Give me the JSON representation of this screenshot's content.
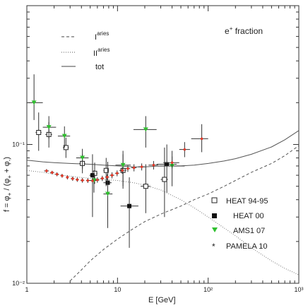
{
  "chart_data": {
    "type": "scatter",
    "title": "e+ fraction",
    "title_parts": {
      "base": "e",
      "sup": "+",
      "rest": " fraction"
    },
    "xlabel": "E [GeV]",
    "ylabel": "f = φ+ / (φ+ + φ-)",
    "ylabel_parts": [
      "f = φ",
      "+",
      " / (φ",
      "+",
      " + φ",
      "-",
      ")"
    ],
    "x_scale": "log",
    "y_scale": "log",
    "xlim": [
      1,
      1000
    ],
    "ylim": [
      0.01,
      1
    ],
    "x_ticks": [
      {
        "value": 1,
        "label": "1"
      },
      {
        "value": 10,
        "label": "10"
      },
      {
        "value": 100,
        "label": "10²"
      },
      {
        "value": 1000,
        "label": "10³"
      }
    ],
    "y_ticks": [
      {
        "value": 0.01,
        "label": "10⁻²"
      },
      {
        "value": 0.1,
        "label": "10⁻¹"
      }
    ],
    "grid": false,
    "legend_lines_placement": "top-left",
    "legend_markers_placement": "bottom-right",
    "line_legend": [
      {
        "name": "I",
        "sup": "aries",
        "style": "dashed"
      },
      {
        "name": "II",
        "sup": "aries",
        "style": "dotted"
      },
      {
        "name": "tot",
        "sup": "",
        "style": "solid"
      }
    ],
    "lines": [
      {
        "name": "tot",
        "style": "solid",
        "color": "#555555",
        "x": [
          1,
          1.5,
          2,
          3,
          5,
          7,
          10,
          15,
          20,
          30,
          50,
          70,
          100,
          150,
          200,
          300,
          500,
          700,
          1000
        ],
        "y": [
          0.077,
          0.075,
          0.074,
          0.073,
          0.072,
          0.071,
          0.07,
          0.069,
          0.069,
          0.07,
          0.07,
          0.071,
          0.073,
          0.076,
          0.079,
          0.085,
          0.096,
          0.108,
          0.126
        ]
      },
      {
        "name": "I",
        "style": "dashed",
        "color": "#555555",
        "x": [
          3,
          4,
          5,
          7,
          10,
          15,
          20,
          30,
          50,
          70,
          100,
          150,
          200,
          300,
          500,
          700,
          1000
        ],
        "y": [
          0.0104,
          0.0125,
          0.0145,
          0.0175,
          0.0208,
          0.0248,
          0.0278,
          0.0315,
          0.036,
          0.04,
          0.044,
          0.05,
          0.055,
          0.063,
          0.073,
          0.083,
          0.098
        ]
      },
      {
        "name": "II",
        "style": "dotted",
        "color": "#777777",
        "x": [
          1,
          1.5,
          2,
          3,
          5,
          7,
          10,
          15,
          20,
          30,
          50,
          70,
          100,
          150,
          200,
          300,
          500,
          700,
          1000
        ],
        "y": [
          0.065,
          0.063,
          0.061,
          0.059,
          0.057,
          0.056,
          0.055,
          0.053,
          0.051,
          0.047,
          0.04,
          0.035,
          0.03,
          0.025,
          0.022,
          0.018,
          0.0145,
          0.0128,
          0.0115
        ]
      }
    ],
    "series": [
      {
        "name": "HEAT 94-95",
        "marker": "open-square",
        "color": "#222222",
        "points": [
          {
            "x": 1.35,
            "y": 0.122,
            "xlo": 1.25,
            "xhi": 1.45,
            "ylo": 0.09,
            "yhi": 0.17
          },
          {
            "x": 1.75,
            "y": 0.118,
            "xlo": 1.6,
            "xhi": 1.9,
            "ylo": 0.095,
            "yhi": 0.145
          },
          {
            "x": 2.7,
            "y": 0.095,
            "xlo": 2.5,
            "xhi": 2.9,
            "ylo": 0.08,
            "yhi": 0.112
          },
          {
            "x": 4.1,
            "y": 0.073,
            "xlo": 3.8,
            "xhi": 4.4,
            "ylo": 0.062,
            "yhi": 0.085
          },
          {
            "x": 5.6,
            "y": 0.062,
            "xlo": 5.2,
            "xhi": 6.0,
            "ylo": 0.052,
            "yhi": 0.074
          },
          {
            "x": 7.5,
            "y": 0.065,
            "xlo": 7.0,
            "xhi": 8.0,
            "ylo": 0.05,
            "yhi": 0.08
          },
          {
            "x": 11.5,
            "y": 0.065,
            "xlo": 10.5,
            "xhi": 12.5,
            "ylo": 0.048,
            "yhi": 0.085
          },
          {
            "x": 20.5,
            "y": 0.05,
            "xlo": 18.0,
            "xhi": 23.0,
            "ylo": 0.032,
            "yhi": 0.072
          },
          {
            "x": 33.0,
            "y": 0.056,
            "xlo": 30.0,
            "xhi": 36.0,
            "ylo": 0.03,
            "yhi": 0.095
          }
        ]
      },
      {
        "name": "HEAT 00",
        "marker": "filled-square",
        "color": "#111111",
        "points": [
          {
            "x": 5.3,
            "y": 0.06,
            "xlo": 4.9,
            "xhi": 5.7,
            "ylo": 0.03,
            "yhi": 0.085
          },
          {
            "x": 7.8,
            "y": 0.053,
            "xlo": 7.0,
            "xhi": 8.6,
            "ylo": 0.03,
            "yhi": 0.075
          },
          {
            "x": 13.5,
            "y": 0.036,
            "xlo": 10.8,
            "xhi": 17.0,
            "ylo": 0.018,
            "yhi": 0.058
          },
          {
            "x": 35.0,
            "y": 0.072,
            "xlo": 27.0,
            "xhi": 45.0,
            "ylo": 0.045,
            "yhi": 0.1
          }
        ]
      },
      {
        "name": "AMS1 07",
        "marker": "green-triangle",
        "color": "#2fbf2f",
        "points": [
          {
            "x": 1.2,
            "y": 0.2,
            "xlo": 1.05,
            "xhi": 1.5,
            "ylo": 0.15,
            "yhi": 0.32
          },
          {
            "x": 1.75,
            "y": 0.133,
            "xlo": 1.5,
            "xhi": 2.1,
            "ylo": 0.11,
            "yhi": 0.16
          },
          {
            "x": 2.6,
            "y": 0.115,
            "xlo": 2.2,
            "xhi": 3.0,
            "ylo": 0.095,
            "yhi": 0.135
          },
          {
            "x": 4.1,
            "y": 0.08,
            "xlo": 3.5,
            "xhi": 4.8,
            "ylo": 0.067,
            "yhi": 0.093
          },
          {
            "x": 5.5,
            "y": 0.055,
            "xlo": 4.9,
            "xhi": 6.2,
            "ylo": 0.045,
            "yhi": 0.065
          },
          {
            "x": 7.8,
            "y": 0.044,
            "xlo": 7.0,
            "xhi": 8.8,
            "ylo": 0.025,
            "yhi": 0.062
          },
          {
            "x": 11.5,
            "y": 0.071,
            "xlo": 9.5,
            "xhi": 14.0,
            "ylo": 0.05,
            "yhi": 0.09
          },
          {
            "x": 20.5,
            "y": 0.128,
            "xlo": 15.0,
            "xhi": 27.0,
            "ylo": 0.095,
            "yhi": 0.16
          },
          {
            "x": 40.0,
            "y": 0.07,
            "xlo": 28.0,
            "xhi": 55.0,
            "ylo": 0.05,
            "yhi": 0.09
          }
        ]
      },
      {
        "name": "PAMELA 10",
        "marker": "red-star",
        "color": "#e03a2a",
        "points": [
          {
            "x": 1.65,
            "y": 0.0645,
            "xlo": 1.55,
            "xhi": 1.75,
            "ylo": 0.0625,
            "yhi": 0.0665
          },
          {
            "x": 1.9,
            "y": 0.0628,
            "xlo": 1.8,
            "xhi": 2.0,
            "ylo": 0.061,
            "yhi": 0.0646
          },
          {
            "x": 2.15,
            "y": 0.061,
            "xlo": 2.05,
            "xhi": 2.25,
            "ylo": 0.059,
            "yhi": 0.063
          },
          {
            "x": 2.45,
            "y": 0.0595,
            "xlo": 2.35,
            "xhi": 2.55,
            "ylo": 0.0576,
            "yhi": 0.0614
          },
          {
            "x": 2.8,
            "y": 0.058,
            "xlo": 2.7,
            "xhi": 2.9,
            "ylo": 0.056,
            "yhi": 0.06
          },
          {
            "x": 3.2,
            "y": 0.0567,
            "xlo": 3.05,
            "xhi": 3.35,
            "ylo": 0.0547,
            "yhi": 0.0587
          },
          {
            "x": 3.6,
            "y": 0.0558,
            "xlo": 3.45,
            "xhi": 3.75,
            "ylo": 0.0538,
            "yhi": 0.0578
          },
          {
            "x": 4.1,
            "y": 0.0552,
            "xlo": 3.9,
            "xhi": 4.3,
            "ylo": 0.053,
            "yhi": 0.0574
          },
          {
            "x": 4.7,
            "y": 0.055,
            "xlo": 4.5,
            "xhi": 4.9,
            "ylo": 0.0528,
            "yhi": 0.0572
          },
          {
            "x": 5.3,
            "y": 0.0548,
            "xlo": 5.1,
            "xhi": 5.5,
            "ylo": 0.0526,
            "yhi": 0.057
          },
          {
            "x": 6.0,
            "y": 0.0555,
            "xlo": 5.7,
            "xhi": 6.3,
            "ylo": 0.053,
            "yhi": 0.058
          },
          {
            "x": 6.8,
            "y": 0.057,
            "xlo": 6.5,
            "xhi": 7.1,
            "ylo": 0.0545,
            "yhi": 0.0595
          },
          {
            "x": 7.7,
            "y": 0.0582,
            "xlo": 7.3,
            "xhi": 8.1,
            "ylo": 0.0555,
            "yhi": 0.061
          },
          {
            "x": 8.7,
            "y": 0.06,
            "xlo": 8.2,
            "xhi": 9.2,
            "ylo": 0.057,
            "yhi": 0.063
          },
          {
            "x": 9.9,
            "y": 0.062,
            "xlo": 9.4,
            "xhi": 10.4,
            "ylo": 0.059,
            "yhi": 0.065
          },
          {
            "x": 11.3,
            "y": 0.065,
            "xlo": 10.7,
            "xhi": 11.9,
            "ylo": 0.0615,
            "yhi": 0.0685
          },
          {
            "x": 13.0,
            "y": 0.067,
            "xlo": 12.2,
            "xhi": 13.8,
            "ylo": 0.0635,
            "yhi": 0.0705
          },
          {
            "x": 15.2,
            "y": 0.068,
            "xlo": 14.2,
            "xhi": 16.2,
            "ylo": 0.064,
            "yhi": 0.072
          },
          {
            "x": 18.5,
            "y": 0.069,
            "xlo": 17.0,
            "xhi": 20.0,
            "ylo": 0.065,
            "yhi": 0.073
          },
          {
            "x": 25.0,
            "y": 0.071,
            "xlo": 22.0,
            "xhi": 28.0,
            "ylo": 0.066,
            "yhi": 0.076
          },
          {
            "x": 40.0,
            "y": 0.074,
            "xlo": 32.0,
            "xhi": 48.0,
            "ylo": 0.067,
            "yhi": 0.082
          },
          {
            "x": 55.0,
            "y": 0.092,
            "xlo": 48.0,
            "xhi": 63.0,
            "ylo": 0.081,
            "yhi": 0.104
          },
          {
            "x": 85.0,
            "y": 0.11,
            "xlo": 65.0,
            "xhi": 100.0,
            "ylo": 0.088,
            "yhi": 0.14
          }
        ]
      }
    ]
  }
}
